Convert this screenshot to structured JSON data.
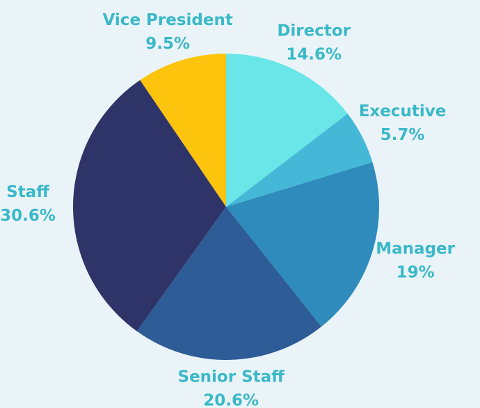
{
  "chart_data": {
    "type": "pie",
    "categories": [
      "Director",
      "Executive",
      "Manager",
      "Senior Staff",
      "Staff",
      "Vice President"
    ],
    "values": [
      14.6,
      5.7,
      19,
      20.6,
      30.6,
      9.5
    ],
    "value_labels": [
      "14.6%",
      "5.7%",
      "19%",
      "20.6%",
      "30.6%",
      "9.5%"
    ],
    "colors": [
      "#6ae6e8",
      "#44b8d6",
      "#2e8bbb",
      "#2e5c96",
      "#2f3468",
      "#fcc40c"
    ],
    "label_color": "#3ab8c8"
  }
}
